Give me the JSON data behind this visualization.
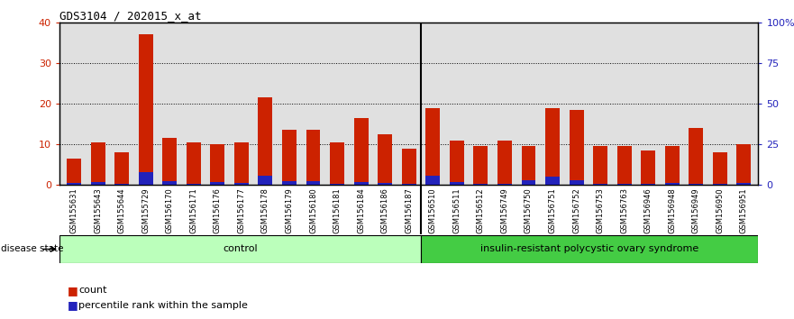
{
  "title": "GDS3104 / 202015_x_at",
  "samples": [
    "GSM155631",
    "GSM155643",
    "GSM155644",
    "GSM155729",
    "GSM156170",
    "GSM156171",
    "GSM156176",
    "GSM156177",
    "GSM156178",
    "GSM156179",
    "GSM156180",
    "GSM156181",
    "GSM156184",
    "GSM156186",
    "GSM156187",
    "GSM156510",
    "GSM156511",
    "GSM156512",
    "GSM156749",
    "GSM156750",
    "GSM156751",
    "GSM156752",
    "GSM156753",
    "GSM156763",
    "GSM156946",
    "GSM156948",
    "GSM156949",
    "GSM156950",
    "GSM156951"
  ],
  "count_values": [
    6.5,
    10.5,
    8.0,
    37.0,
    11.5,
    10.5,
    10.0,
    10.5,
    21.5,
    13.5,
    13.5,
    10.5,
    16.5,
    12.5,
    9.0,
    19.0,
    11.0,
    9.5,
    11.0,
    9.5,
    19.0,
    18.5,
    9.5,
    9.5,
    8.5,
    9.5,
    14.0,
    8.0,
    10.0
  ],
  "percentile_values": [
    1.5,
    2.0,
    1.0,
    8.0,
    2.5,
    0.5,
    2.0,
    1.5,
    5.5,
    2.5,
    2.5,
    1.0,
    2.0,
    1.5,
    1.0,
    5.5,
    2.0,
    1.0,
    1.0,
    3.0,
    5.0,
    3.0,
    1.0,
    1.0,
    1.0,
    1.5,
    1.0,
    0.5,
    1.5
  ],
  "control_count": 15,
  "disease_count": 14,
  "bar_color_red": "#CC2200",
  "bar_color_blue": "#2222BB",
  "left_axis_color": "#CC2200",
  "right_axis_color": "#2222BB",
  "ylim_left": [
    0,
    40
  ],
  "ylim_right": [
    0,
    100
  ],
  "yticks_left": [
    0,
    10,
    20,
    30,
    40
  ],
  "ytick_labels_left": [
    "0",
    "10",
    "20",
    "30",
    "40"
  ],
  "yticks_right": [
    0,
    25,
    50,
    75,
    100
  ],
  "ytick_labels_right": [
    "0",
    "25",
    "50",
    "75",
    "100%"
  ],
  "control_label": "control",
  "disease_label": "insulin-resistant polycystic ovary syndrome",
  "disease_state_label": "disease state",
  "legend_count_label": "count",
  "legend_pct_label": "percentile rank within the sample",
  "control_color": "#BBFFBB",
  "disease_color": "#44CC44",
  "bar_width": 0.6,
  "separator_after": 15,
  "bg_color": "#CCCCCC"
}
